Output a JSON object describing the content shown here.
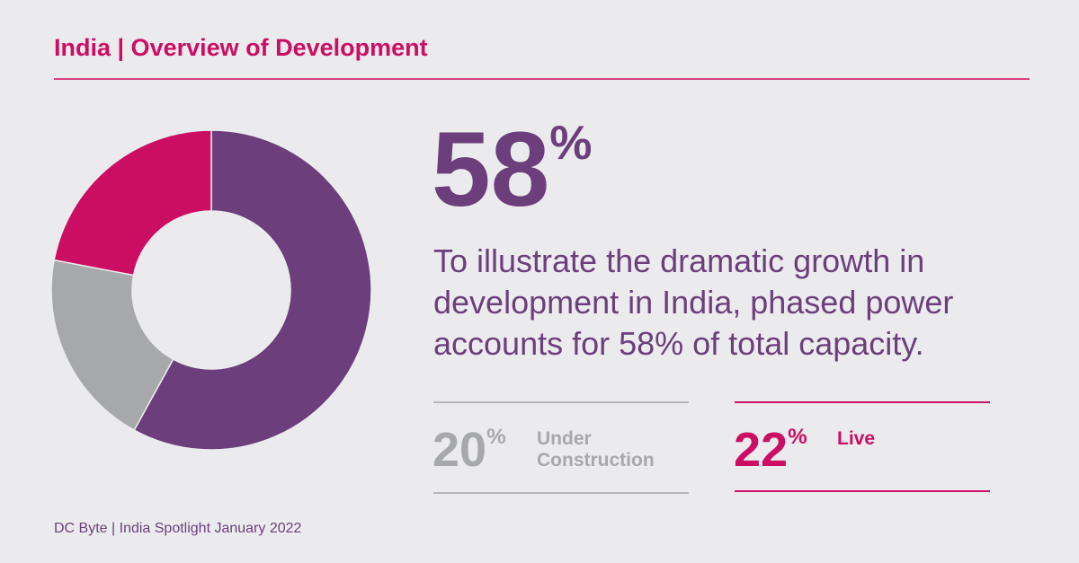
{
  "title": "India | Overview of Development",
  "headline": {
    "value": "58",
    "unit": "%"
  },
  "description": "To illustrate the dramatic growth in development in India, phased power accounts for 58% of total capacity.",
  "stats": [
    {
      "value": "20",
      "unit": "%",
      "label": "Under Construction",
      "color": "#a7a8aa"
    },
    {
      "value": "22",
      "unit": "%",
      "label": "Live",
      "color": "#cc0e63"
    }
  ],
  "footer": "DC Byte | India Spotlight January 2022",
  "chart_data": {
    "type": "pie",
    "donut": true,
    "categories": [
      "Phased Power",
      "Under Construction",
      "Live"
    ],
    "values": [
      58,
      20,
      22
    ],
    "colors": [
      "#6c3f7c",
      "#a7a8aa",
      "#cc0e63"
    ],
    "start": "top",
    "direction": "clockwise"
  }
}
